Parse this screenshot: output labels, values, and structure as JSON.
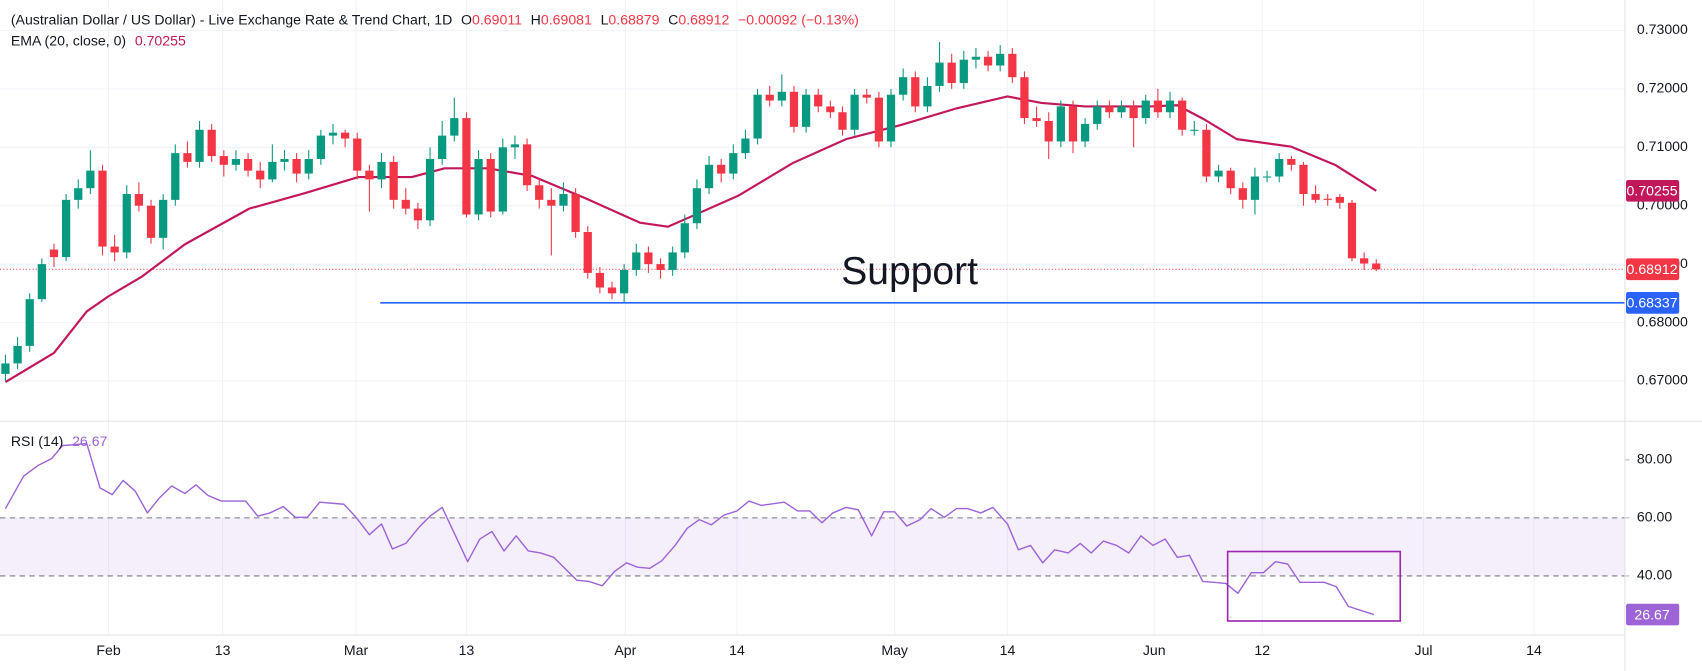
{
  "chart_data": {
    "type": "candlestick",
    "title": "(Australian Dollar / US Dollar) - Live Exchange Rate & Trend Chart, 1D",
    "ohlc_labels": [
      "O",
      "H",
      "L",
      "C"
    ],
    "change": "−0.00092 (−0.13%)",
    "up_color": "#089981",
    "down_color": "#f23645",
    "candles": [
      [
        0.6712,
        0.6745,
        0.67,
        0.673
      ],
      [
        0.673,
        0.6775,
        0.672,
        0.676
      ],
      [
        0.676,
        0.685,
        0.675,
        0.684
      ],
      [
        0.684,
        0.691,
        0.6835,
        0.69
      ],
      [
        0.6925,
        0.6935,
        0.6895,
        0.6912
      ],
      [
        0.6912,
        0.702,
        0.6905,
        0.701
      ],
      [
        0.701,
        0.7045,
        0.6995,
        0.703
      ],
      [
        0.703,
        0.7095,
        0.702,
        0.706
      ],
      [
        0.706,
        0.707,
        0.6915,
        0.693
      ],
      [
        0.693,
        0.695,
        0.6905,
        0.692
      ],
      [
        0.692,
        0.7035,
        0.691,
        0.702
      ],
      [
        0.702,
        0.704,
        0.699,
        0.7
      ],
      [
        0.7,
        0.701,
        0.6935,
        0.6945
      ],
      [
        0.6945,
        0.702,
        0.6925,
        0.701
      ],
      [
        0.701,
        0.7105,
        0.7,
        0.709
      ],
      [
        0.709,
        0.711,
        0.7065,
        0.7075
      ],
      [
        0.7075,
        0.7145,
        0.7065,
        0.713
      ],
      [
        0.713,
        0.714,
        0.7075,
        0.7085
      ],
      [
        0.7085,
        0.7095,
        0.705,
        0.707
      ],
      [
        0.707,
        0.7095,
        0.706,
        0.708
      ],
      [
        0.708,
        0.709,
        0.705,
        0.706
      ],
      [
        0.706,
        0.7075,
        0.703,
        0.7045
      ],
      [
        0.7045,
        0.7105,
        0.704,
        0.7075
      ],
      [
        0.7075,
        0.7095,
        0.706,
        0.708
      ],
      [
        0.708,
        0.709,
        0.704,
        0.7055
      ],
      [
        0.7055,
        0.7095,
        0.7045,
        0.708
      ],
      [
        0.708,
        0.713,
        0.707,
        0.712
      ],
      [
        0.712,
        0.714,
        0.7105,
        0.7125
      ],
      [
        0.7125,
        0.713,
        0.71,
        0.7115
      ],
      [
        0.7115,
        0.7125,
        0.7045,
        0.706
      ],
      [
        0.706,
        0.707,
        0.699,
        0.7045
      ],
      [
        0.7045,
        0.709,
        0.703,
        0.7075
      ],
      [
        0.7075,
        0.7085,
        0.6995,
        0.701
      ],
      [
        0.701,
        0.703,
        0.6985,
        0.6995
      ],
      [
        0.6995,
        0.7005,
        0.696,
        0.6975
      ],
      [
        0.6975,
        0.71,
        0.6965,
        0.708
      ],
      [
        0.708,
        0.7145,
        0.707,
        0.712
      ],
      [
        0.712,
        0.7185,
        0.711,
        0.715
      ],
      [
        0.715,
        0.716,
        0.698,
        0.6985
      ],
      [
        0.6985,
        0.7095,
        0.6975,
        0.708
      ],
      [
        0.708,
        0.709,
        0.698,
        0.699
      ],
      [
        0.699,
        0.7115,
        0.6985,
        0.71
      ],
      [
        0.71,
        0.712,
        0.708,
        0.7105
      ],
      [
        0.7105,
        0.7115,
        0.7025,
        0.7035
      ],
      [
        0.7035,
        0.7045,
        0.6995,
        0.701
      ],
      [
        0.701,
        0.703,
        0.6915,
        0.7
      ],
      [
        0.7,
        0.704,
        0.699,
        0.702
      ],
      [
        0.702,
        0.703,
        0.6945,
        0.6955
      ],
      [
        0.6955,
        0.6965,
        0.6875,
        0.6885
      ],
      [
        0.6885,
        0.6895,
        0.685,
        0.686
      ],
      [
        0.686,
        0.687,
        0.684,
        0.685
      ],
      [
        0.685,
        0.69,
        0.6835,
        0.689
      ],
      [
        0.689,
        0.6935,
        0.688,
        0.692
      ],
      [
        0.692,
        0.693,
        0.6885,
        0.69
      ],
      [
        0.69,
        0.691,
        0.6875,
        0.689
      ],
      [
        0.689,
        0.693,
        0.688,
        0.692
      ],
      [
        0.692,
        0.6985,
        0.691,
        0.697
      ],
      [
        0.697,
        0.7045,
        0.696,
        0.703
      ],
      [
        0.703,
        0.7085,
        0.702,
        0.707
      ],
      [
        0.707,
        0.708,
        0.704,
        0.7055
      ],
      [
        0.7055,
        0.7105,
        0.7045,
        0.709
      ],
      [
        0.709,
        0.713,
        0.708,
        0.7115
      ],
      [
        0.7115,
        0.72,
        0.7105,
        0.719
      ],
      [
        0.719,
        0.7205,
        0.717,
        0.718
      ],
      [
        0.718,
        0.7225,
        0.717,
        0.7195
      ],
      [
        0.7195,
        0.7205,
        0.7125,
        0.7135
      ],
      [
        0.7135,
        0.72,
        0.7125,
        0.719
      ],
      [
        0.719,
        0.72,
        0.716,
        0.717
      ],
      [
        0.717,
        0.718,
        0.715,
        0.716
      ],
      [
        0.716,
        0.717,
        0.712,
        0.713
      ],
      [
        0.713,
        0.72,
        0.712,
        0.719
      ],
      [
        0.719,
        0.72,
        0.7175,
        0.7185
      ],
      [
        0.7185,
        0.7195,
        0.71,
        0.711
      ],
      [
        0.711,
        0.72,
        0.71,
        0.719
      ],
      [
        0.719,
        0.7235,
        0.718,
        0.722
      ],
      [
        0.722,
        0.723,
        0.716,
        0.717
      ],
      [
        0.717,
        0.722,
        0.716,
        0.7205
      ],
      [
        0.7205,
        0.728,
        0.7195,
        0.7245
      ],
      [
        0.7245,
        0.726,
        0.72,
        0.721
      ],
      [
        0.721,
        0.7265,
        0.72,
        0.725
      ],
      [
        0.725,
        0.727,
        0.7235,
        0.7255
      ],
      [
        0.7255,
        0.7265,
        0.723,
        0.724
      ],
      [
        0.724,
        0.7275,
        0.723,
        0.726
      ],
      [
        0.726,
        0.727,
        0.721,
        0.722
      ],
      [
        0.722,
        0.723,
        0.714,
        0.715
      ],
      [
        0.715,
        0.717,
        0.7135,
        0.7145
      ],
      [
        0.7145,
        0.716,
        0.708,
        0.711
      ],
      [
        0.711,
        0.718,
        0.71,
        0.717
      ],
      [
        0.717,
        0.718,
        0.709,
        0.711
      ],
      [
        0.711,
        0.715,
        0.71,
        0.714
      ],
      [
        0.714,
        0.718,
        0.713,
        0.717
      ],
      [
        0.717,
        0.718,
        0.715,
        0.716
      ],
      [
        0.716,
        0.718,
        0.715,
        0.717
      ],
      [
        0.717,
        0.718,
        0.71,
        0.715
      ],
      [
        0.715,
        0.719,
        0.714,
        0.718
      ],
      [
        0.718,
        0.72,
        0.715,
        0.716
      ],
      [
        0.716,
        0.7195,
        0.715,
        0.718
      ],
      [
        0.718,
        0.7185,
        0.712,
        0.713
      ],
      [
        0.713,
        0.7145,
        0.712,
        0.713
      ],
      [
        0.713,
        0.714,
        0.704,
        0.705
      ],
      [
        0.705,
        0.707,
        0.704,
        0.706
      ],
      [
        0.706,
        0.7065,
        0.702,
        0.703
      ],
      [
        0.703,
        0.704,
        0.6995,
        0.701
      ],
      [
        0.701,
        0.7065,
        0.6985,
        0.705
      ],
      [
        0.705,
        0.706,
        0.704,
        0.705
      ],
      [
        0.705,
        0.709,
        0.704,
        0.708
      ],
      [
        0.708,
        0.7085,
        0.706,
        0.707
      ],
      [
        0.707,
        0.7075,
        0.7,
        0.702
      ],
      [
        0.702,
        0.7035,
        0.7005,
        0.701
      ],
      [
        0.7012,
        0.702,
        0.7,
        0.701
      ],
      [
        0.7015,
        0.702,
        0.6995,
        0.7005
      ],
      [
        0.7005,
        0.701,
        0.6905,
        0.691
      ],
      [
        0.691,
        0.692,
        0.689,
        0.6901
      ],
      [
        0.69011,
        0.69081,
        0.68879,
        0.68912
      ]
    ],
    "xlim": [
      -0.45,
      133.5
    ],
    "xticks": [
      {
        "value": 8.5,
        "label": "Feb"
      },
      {
        "value": 17.9,
        "label": "13"
      },
      {
        "value": 28.9,
        "label": "Mar"
      },
      {
        "value": 38.0,
        "label": "13"
      },
      {
        "value": 51.1,
        "label": "Apr"
      },
      {
        "value": 60.3,
        "label": "14"
      },
      {
        "value": 73.3,
        "label": "May"
      },
      {
        "value": 82.6,
        "label": "14"
      },
      {
        "value": 94.7,
        "label": "Jun"
      },
      {
        "value": 103.6,
        "label": "12"
      },
      {
        "value": 116.9,
        "label": "Jul"
      },
      {
        "value": 126.0,
        "label": "14"
      }
    ],
    "ylim": [
      0.6631,
      0.7352
    ],
    "yticks": [
      {
        "value": 0.67,
        "label": "0.67000"
      },
      {
        "value": 0.68,
        "label": "0.68000"
      },
      {
        "value": 0.69,
        "label": "0.69000"
      },
      {
        "value": 0.7,
        "label": "0.70000"
      },
      {
        "value": 0.71,
        "label": "0.71000"
      },
      {
        "value": 0.72,
        "label": "0.72000"
      },
      {
        "value": 0.73,
        "label": "0.73000"
      }
    ],
    "grid": true,
    "ema": {
      "name": "EMA (20, close, 0)",
      "color": "#c2185b",
      "x": [
        0,
        4.0,
        6.7,
        8.5,
        11.2,
        14.8,
        20.1,
        24.6,
        29.1,
        33.5,
        36.2,
        39.8,
        43.4,
        47.9,
        52.3,
        54.6,
        56.8,
        60.4,
        64.9,
        69.3,
        73.8,
        78.3,
        82.6,
        85.4,
        89.0,
        94.4,
        96.6,
        98.8,
        101.5,
        106.0,
        109.6,
        113.0
      ],
      "values": [
        0.6698,
        0.6748,
        0.6819,
        0.6845,
        0.6878,
        0.6934,
        0.6995,
        0.7021,
        0.7049,
        0.7049,
        0.7064,
        0.7064,
        0.7051,
        0.7012,
        0.6971,
        0.6964,
        0.6984,
        0.7017,
        0.7073,
        0.7114,
        0.7138,
        0.7166,
        0.7187,
        0.7176,
        0.717,
        0.717,
        0.7172,
        0.7148,
        0.7114,
        0.7101,
        0.707,
        0.70255
      ]
    },
    "close_color": "#f23645",
    "support": {
      "label": "Support",
      "value": 0.68337,
      "start": 30.9,
      "color": "#2962ff"
    },
    "rsi": {
      "name": "RSI (14)",
      "color": "#9c64d6",
      "band": [
        40,
        60
      ],
      "ylim": [
        19.6,
        93.3
      ],
      "yticks": [
        {
          "value": 40,
          "label": "40.00"
        },
        {
          "value": 60,
          "label": "60.00"
        },
        {
          "value": 80,
          "label": "80.00"
        }
      ],
      "x": [
        0,
        1.5,
        2.7,
        3.8,
        4.7,
        6.7,
        7.8,
        8.8,
        9.7,
        10.7,
        11.7,
        12.7,
        13.7,
        14.8,
        15.7,
        16.7,
        17.8,
        19.8,
        20.8,
        21.8,
        22.9,
        23.9,
        24.9,
        25.9,
        27.9,
        28.9,
        30.0,
        31.0,
        31.9,
        33.0,
        34.1,
        35.0,
        36.0,
        37.1,
        38.1,
        39.1,
        40.1,
        41.1,
        42.1,
        43.1,
        44.1,
        45.2,
        47.1,
        48.1,
        49.2,
        50.2,
        51.2,
        52.1,
        53.1,
        54.1,
        55.2,
        56.2,
        57.2,
        58.2,
        59.2,
        60.3,
        61.3,
        62.3,
        64.2,
        65.3,
        66.3,
        67.3,
        68.2,
        69.3,
        70.3,
        71.4,
        72.4,
        73.3,
        74.3,
        75.4,
        76.3,
        77.4,
        78.4,
        79.3,
        80.4,
        81.4,
        82.6,
        83.5,
        84.5,
        85.5,
        86.5,
        87.6,
        88.6,
        89.5,
        90.5,
        91.6,
        92.6,
        93.6,
        94.6,
        95.6,
        96.6,
        97.6,
        98.7,
        99.6,
        100.6,
        101.6,
        102.7,
        103.7,
        104.7,
        105.7,
        106.7,
        107.7,
        108.7,
        109.7,
        110.7,
        111.8,
        112.8
      ],
      "values": [
        63.2,
        74.4,
        78.1,
        80.4,
        84.9,
        85.6,
        70.3,
        68.0,
        72.9,
        69.2,
        61.7,
        66.9,
        71.0,
        68.4,
        71.4,
        67.7,
        65.8,
        65.8,
        60.6,
        61.7,
        63.9,
        60.2,
        60.2,
        65.4,
        64.7,
        60.2,
        54.2,
        57.9,
        49.3,
        51.2,
        56.8,
        60.6,
        63.6,
        53.8,
        44.9,
        52.7,
        55.3,
        48.6,
        53.8,
        48.6,
        47.9,
        46.4,
        38.5,
        38.1,
        36.6,
        41.5,
        44.5,
        43.0,
        42.6,
        45.2,
        50.5,
        56.4,
        59.4,
        57.6,
        60.9,
        62.4,
        65.8,
        64.3,
        65.4,
        62.4,
        62.4,
        58.3,
        61.7,
        63.6,
        62.8,
        53.8,
        62.1,
        62.1,
        57.2,
        59.4,
        63.2,
        60.2,
        63.2,
        63.2,
        61.7,
        63.6,
        57.9,
        49.0,
        50.5,
        44.5,
        49.0,
        47.9,
        51.2,
        47.9,
        52.0,
        50.5,
        47.9,
        53.8,
        50.5,
        52.7,
        46.4,
        47.1,
        38.1,
        37.8,
        37.4,
        34.0,
        41.1,
        41.1,
        44.9,
        44.1,
        37.8,
        37.8,
        37.8,
        36.3,
        29.5,
        28.0,
        26.67
      ]
    }
  }
}
